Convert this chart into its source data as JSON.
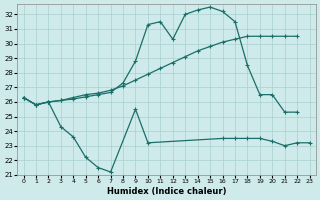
{
  "background_color": "#ceeaea",
  "grid_color": "#aacfcf",
  "line_color": "#1a6e6a",
  "x_label": "Humidex (Indice chaleur)",
  "xlim": [
    -0.5,
    23.5
  ],
  "ylim": [
    21,
    32.7
  ],
  "yticks": [
    21,
    22,
    23,
    24,
    25,
    26,
    27,
    28,
    29,
    30,
    31,
    32
  ],
  "xticks": [
    0,
    1,
    2,
    3,
    4,
    5,
    6,
    7,
    8,
    9,
    10,
    11,
    12,
    13,
    14,
    15,
    16,
    17,
    18,
    19,
    20,
    21,
    22,
    23
  ],
  "series": [
    {
      "x": [
        0,
        1,
        2,
        3,
        4,
        5,
        6,
        7,
        8,
        9,
        10,
        11,
        12,
        13,
        14,
        15,
        16,
        17,
        18,
        19,
        20,
        21,
        22
      ],
      "y": [
        26.3,
        25.8,
        26.0,
        26.1,
        26.2,
        26.35,
        26.5,
        26.65,
        27.3,
        28.8,
        31.3,
        31.5,
        30.3,
        32.0,
        32.3,
        32.5,
        32.2,
        31.5,
        28.5,
        26.5,
        26.5,
        25.3,
        25.3
      ]
    },
    {
      "x": [
        0,
        1,
        2,
        3,
        4,
        5,
        6,
        7,
        8,
        9,
        10,
        11,
        12,
        13,
        14,
        15,
        16,
        17,
        18,
        19,
        20,
        21,
        22
      ],
      "y": [
        26.3,
        25.8,
        26.0,
        26.1,
        26.3,
        26.5,
        26.6,
        26.8,
        27.1,
        27.5,
        27.9,
        28.3,
        28.7,
        29.1,
        29.5,
        29.8,
        30.1,
        30.3,
        30.5,
        30.5,
        30.5,
        30.5,
        30.5
      ]
    },
    {
      "x": [
        0,
        1,
        2,
        3,
        4,
        5,
        6,
        7,
        9,
        10,
        16,
        17,
        18,
        19,
        20,
        21,
        22,
        23
      ],
      "y": [
        26.3,
        25.8,
        26.0,
        24.3,
        23.6,
        22.2,
        21.5,
        21.2,
        25.5,
        23.2,
        23.5,
        23.5,
        23.5,
        23.5,
        23.3,
        23.0,
        23.2,
        23.2
      ]
    }
  ]
}
